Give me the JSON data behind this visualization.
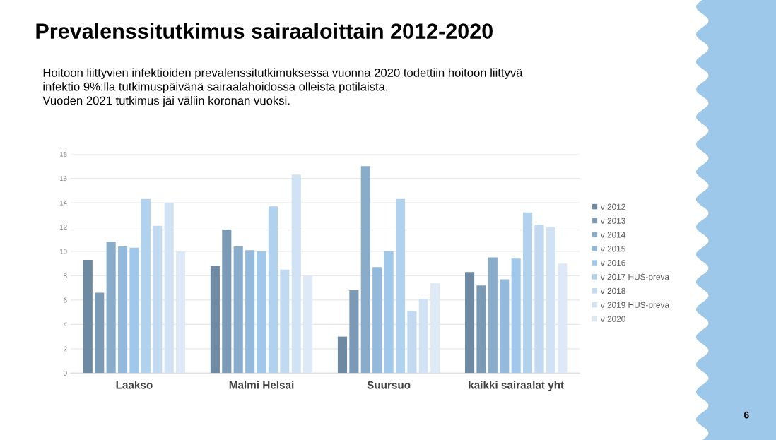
{
  "chart_data": {
    "type": "bar",
    "title": "Prevalenssitutkimus sairaaloittain 2012-2020",
    "subtitle": "Hoitoon liittyvien infektioiden prevalenssitutkimuksessa vuonna 2020 todettiin hoitoon liittyvä\ninfektio 9%:lla tutkimuspäivänä sairaalahoidossa olleista potilaista.\nVuoden 2021 tutkimus jäi väliin koronan vuoksi.",
    "annotations": [
      "6"
    ],
    "categories": [
      "Laakso",
      "Malmi Helsai",
      "Suursuo",
      "kaikki sairaalat yht"
    ],
    "series": [
      {
        "name": "v 2012",
        "color": "#6e8aa3",
        "values": [
          9.3,
          8.8,
          3.0,
          8.3
        ]
      },
      {
        "name": "v 2013",
        "color": "#7a9ab6",
        "values": [
          6.6,
          11.8,
          6.8,
          7.2
        ]
      },
      {
        "name": "v 2014",
        "color": "#89acca",
        "values": [
          10.8,
          10.4,
          17.0,
          9.5
        ]
      },
      {
        "name": "v 2015",
        "color": "#93badc",
        "values": [
          10.4,
          10.1,
          8.7,
          7.7
        ]
      },
      {
        "name": "v 2016",
        "color": "#9fc8ea",
        "values": [
          10.3,
          10.0,
          10.0,
          9.4
        ]
      },
      {
        "name": "v 2017 HUS-preva",
        "color": "#b0d2ef",
        "values": [
          14.3,
          13.7,
          14.3,
          13.2
        ]
      },
      {
        "name": "v 2018",
        "color": "#c2daf1",
        "values": [
          12.1,
          8.5,
          5.1,
          12.2
        ]
      },
      {
        "name": "v 2019 HUS-preva",
        "color": "#d0e2f4",
        "values": [
          14.0,
          16.3,
          6.1,
          12.0
        ]
      },
      {
        "name": "v 2020",
        "color": "#dde9f6",
        "values": [
          10.0,
          8.0,
          7.4,
          9.0
        ]
      }
    ],
    "ylim": [
      0,
      18
    ],
    "yticks": [
      0,
      2,
      4,
      6,
      8,
      10,
      12,
      14,
      16,
      18
    ],
    "grid": "y",
    "legend": "right"
  }
}
